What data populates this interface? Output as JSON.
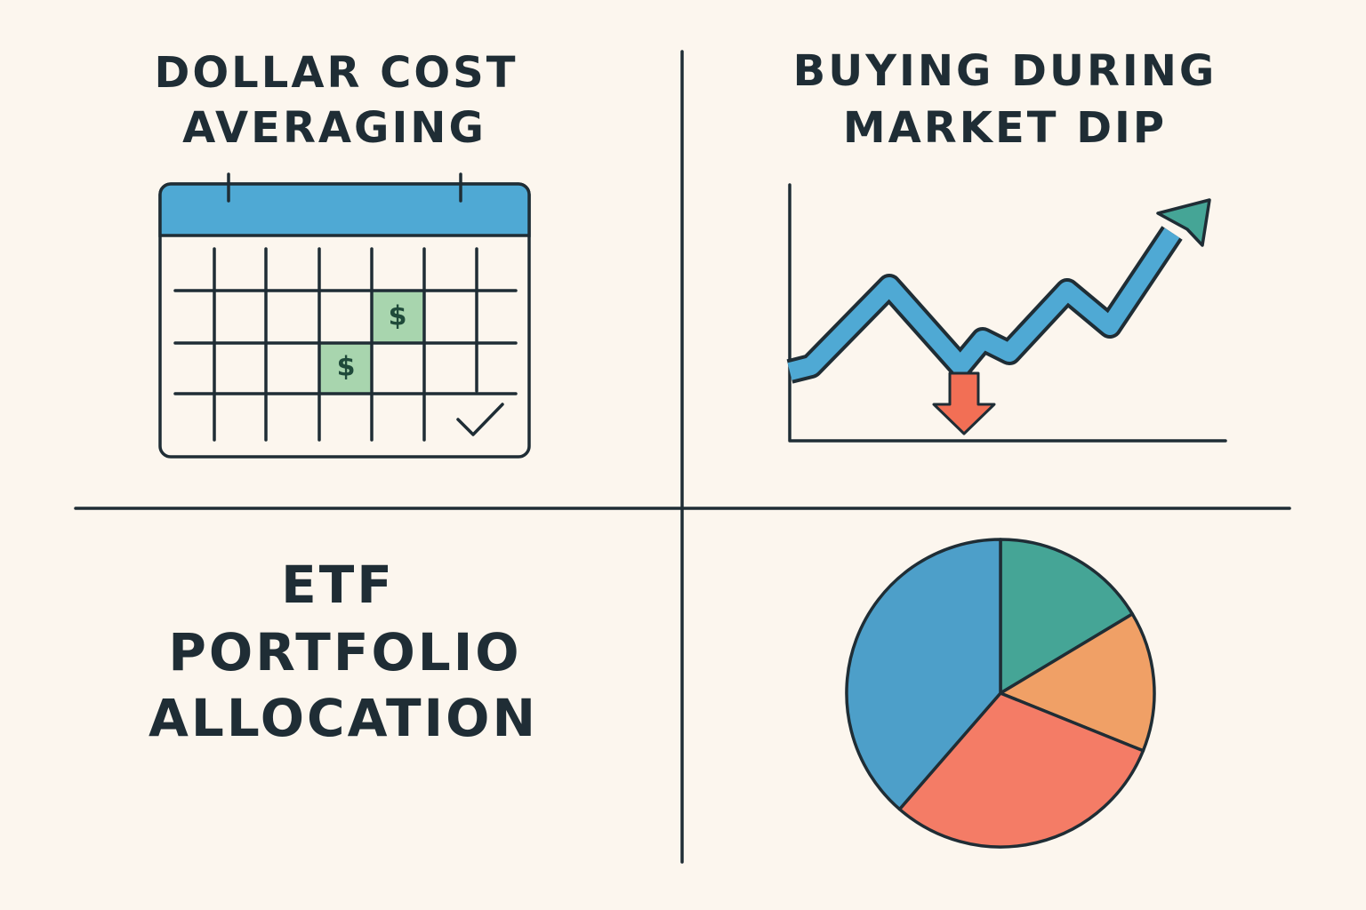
{
  "panels": [
    {
      "title": [
        "DOLLAR COST",
        "AVERAGING"
      ],
      "marks": [
        "$",
        "$"
      ]
    },
    {
      "title": [
        "BUYING DURING",
        "MARKET DIP"
      ]
    },
    {
      "title": [
        "ETF",
        "PORTFOLIO",
        "ALLOCATION"
      ]
    }
  ]
}
